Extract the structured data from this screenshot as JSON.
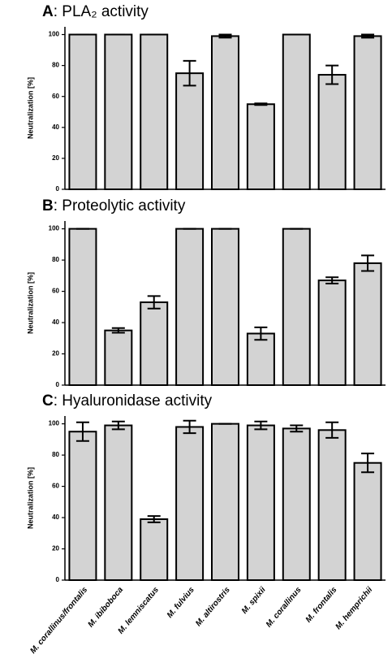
{
  "chart_data": [
    {
      "type": "bar",
      "panel": "A",
      "title": ": PLA₂ activity",
      "ylabel": "Neutralization [%]",
      "values": [
        100,
        100,
        100,
        75,
        99,
        55,
        100,
        74,
        99
      ],
      "errors": [
        0,
        0,
        0,
        8,
        1,
        0.5,
        0,
        6,
        1
      ],
      "color": "#d3d3d3",
      "ylim": [
        0,
        105
      ],
      "yticks": [
        0,
        20,
        40,
        60,
        80,
        100
      ]
    },
    {
      "type": "bar",
      "panel": "B",
      "title": ": Proteolytic activity",
      "ylabel": "Neutralization [%]",
      "values": [
        100,
        35,
        53,
        100,
        100,
        33,
        100,
        67,
        78
      ],
      "errors": [
        0,
        1.5,
        4,
        0,
        0,
        4,
        0,
        2,
        5
      ],
      "color": "#d3d3d3",
      "ylim": [
        0,
        105
      ],
      "yticks": [
        0,
        20,
        40,
        60,
        80,
        100
      ]
    },
    {
      "type": "bar",
      "panel": "C",
      "title": ": Hyaluronidase activity",
      "ylabel": "Neutralization [%]",
      "categories": [
        "M. corallinus/frontalis",
        "M. ibiboboca",
        "M. lemniscatus",
        "M. fulvius",
        "M. altirostris",
        "M. spixii",
        "M. corallinus",
        "M. frontalis",
        "M. hemprichii"
      ],
      "values": [
        95,
        99,
        39,
        98,
        100,
        99,
        97,
        96,
        75
      ],
      "errors": [
        6,
        2.5,
        2,
        4,
        0,
        2.5,
        2,
        5,
        6
      ],
      "color": "#d3d3d3",
      "ylim": [
        0,
        105
      ],
      "yticks": [
        0,
        20,
        40,
        60,
        80,
        100
      ]
    }
  ]
}
